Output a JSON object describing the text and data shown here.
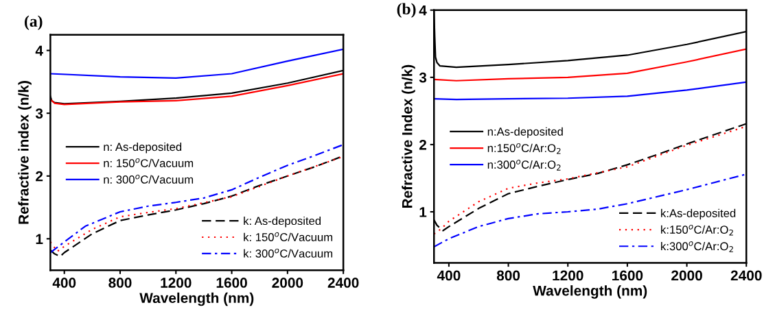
{
  "chart_data": [
    {
      "type": "line",
      "title": "(a)",
      "xlabel": "Wavelength (nm)",
      "ylabel": "Refractive index (n/k)",
      "xlim": [
        300,
        2400
      ],
      "ylim": [
        0.5,
        4.25
      ],
      "xticks": [
        400,
        800,
        1200,
        1600,
        2000,
        2400
      ],
      "yticks": [
        1,
        2,
        3,
        4
      ],
      "grid": false,
      "legend": "center left",
      "marker": "none",
      "series": [
        {
          "name": "n: As-deposited",
          "color": "#000000",
          "line_style": "solid",
          "x": [
            300,
            310,
            330,
            400,
            800,
            1200,
            1600,
            2000,
            2400
          ],
          "values": [
            3.27,
            3.2,
            3.17,
            3.15,
            3.19,
            3.24,
            3.32,
            3.48,
            3.68
          ]
        },
        {
          "name": "n: 150$^{o}$C/Vacuum",
          "color": "#ff0000",
          "line_style": "solid",
          "x": [
            300,
            330,
            400,
            800,
            1200,
            1600,
            2000,
            2400
          ],
          "values": [
            3.22,
            3.16,
            3.14,
            3.18,
            3.2,
            3.27,
            3.44,
            3.63
          ]
        },
        {
          "name": "n: 300$^{o}$C/Vacuum",
          "color": "#0000ff",
          "line_style": "solid",
          "x": [
            300,
            800,
            1200,
            1600,
            2000,
            2400
          ],
          "values": [
            3.63,
            3.58,
            3.56,
            3.63,
            3.83,
            4.02
          ]
        },
        {
          "name": "k: As-deposited",
          "color": "#000000",
          "line_style": "dashed",
          "x": [
            300,
            330,
            370,
            400,
            600,
            800,
            1000,
            1200,
            1400,
            1600,
            1800,
            2000,
            2200,
            2400
          ],
          "values": [
            0.82,
            0.76,
            0.72,
            0.78,
            1.08,
            1.29,
            1.38,
            1.46,
            1.56,
            1.68,
            1.85,
            2.0,
            2.15,
            2.32
          ]
        },
        {
          "name": "k: 150$^{o}$C/Vacuum",
          "color": "#ff0000",
          "line_style": "dotted",
          "x": [
            300,
            350,
            400,
            600,
            800,
            1000,
            1200,
            1600,
            2000,
            2400
          ],
          "values": [
            0.95,
            0.8,
            0.88,
            1.15,
            1.35,
            1.42,
            1.48,
            1.67,
            2.0,
            2.31
          ]
        },
        {
          "name": "k: 300$^{o}$C/Vacuum",
          "color": "#0000ff",
          "line_style": "dashdot",
          "x": [
            300,
            400,
            550,
            800,
            1000,
            1200,
            1400,
            1600,
            1800,
            2000,
            2200,
            2400
          ],
          "values": [
            0.78,
            0.95,
            1.2,
            1.43,
            1.52,
            1.58,
            1.65,
            1.78,
            1.98,
            2.17,
            2.33,
            2.5
          ]
        }
      ]
    },
    {
      "type": "line",
      "title": "(b)",
      "xlabel": "Wavelength (nm)",
      "ylabel": "Refractive Index (n/k)",
      "xlim": [
        300,
        2400
      ],
      "ylim": [
        0.24,
        4
      ],
      "xticks": [
        400,
        800,
        1200,
        1600,
        2000,
        2400
      ],
      "yticks": [
        1,
        2,
        3,
        4
      ],
      "grid": false,
      "legend": "center left",
      "marker": "none",
      "series": [
        {
          "name": "n:As-deposited",
          "color": "#000000",
          "line_style": "solid",
          "x": [
            300,
            305,
            310,
            320,
            340,
            450,
            800,
            1200,
            1600,
            2000,
            2400
          ],
          "values": [
            3.98,
            3.6,
            3.3,
            3.22,
            3.17,
            3.15,
            3.19,
            3.25,
            3.33,
            3.49,
            3.68
          ]
        },
        {
          "name": "n:150$^{o}$C/Ar:O$_{2}$",
          "color": "#ff0000",
          "line_style": "solid",
          "x": [
            300,
            450,
            800,
            1200,
            1600,
            2000,
            2400
          ],
          "values": [
            2.97,
            2.95,
            2.98,
            3.0,
            3.06,
            3.23,
            3.42
          ]
        },
        {
          "name": "n:300$^{o}$C/Ar:O$_{2}$",
          "color": "#0000ff",
          "line_style": "solid",
          "x": [
            300,
            450,
            800,
            1200,
            1600,
            2000,
            2400
          ],
          "values": [
            2.68,
            2.67,
            2.68,
            2.69,
            2.72,
            2.81,
            2.93
          ]
        },
        {
          "name": "k:As-deposited",
          "color": "#000000",
          "line_style": "dashed",
          "x": [
            300,
            320,
            360,
            400,
            600,
            800,
            1000,
            1200,
            1400,
            1600,
            1800,
            2000,
            2200,
            2400
          ],
          "values": [
            0.88,
            0.8,
            0.72,
            0.78,
            1.05,
            1.27,
            1.38,
            1.48,
            1.57,
            1.7,
            1.85,
            2.01,
            2.16,
            2.31
          ]
        },
        {
          "name": "k:150$^{o}$C/Ar:O$_{2}$",
          "color": "#ff0000",
          "line_style": "dotted",
          "x": [
            300,
            350,
            400,
            600,
            800,
            1000,
            1200,
            1600,
            2000,
            2400
          ],
          "values": [
            0.67,
            0.75,
            0.86,
            1.15,
            1.35,
            1.43,
            1.49,
            1.67,
            1.99,
            2.27
          ]
        },
        {
          "name": "k:300$^{o}$C/Ar:O$_{2}$",
          "color": "#0000ff",
          "line_style": "dashdot",
          "x": [
            300,
            400,
            600,
            800,
            1000,
            1200,
            1400,
            1600,
            2000,
            2400
          ],
          "values": [
            0.48,
            0.6,
            0.78,
            0.9,
            0.97,
            1.0,
            1.04,
            1.12,
            1.33,
            1.56
          ]
        }
      ]
    }
  ]
}
